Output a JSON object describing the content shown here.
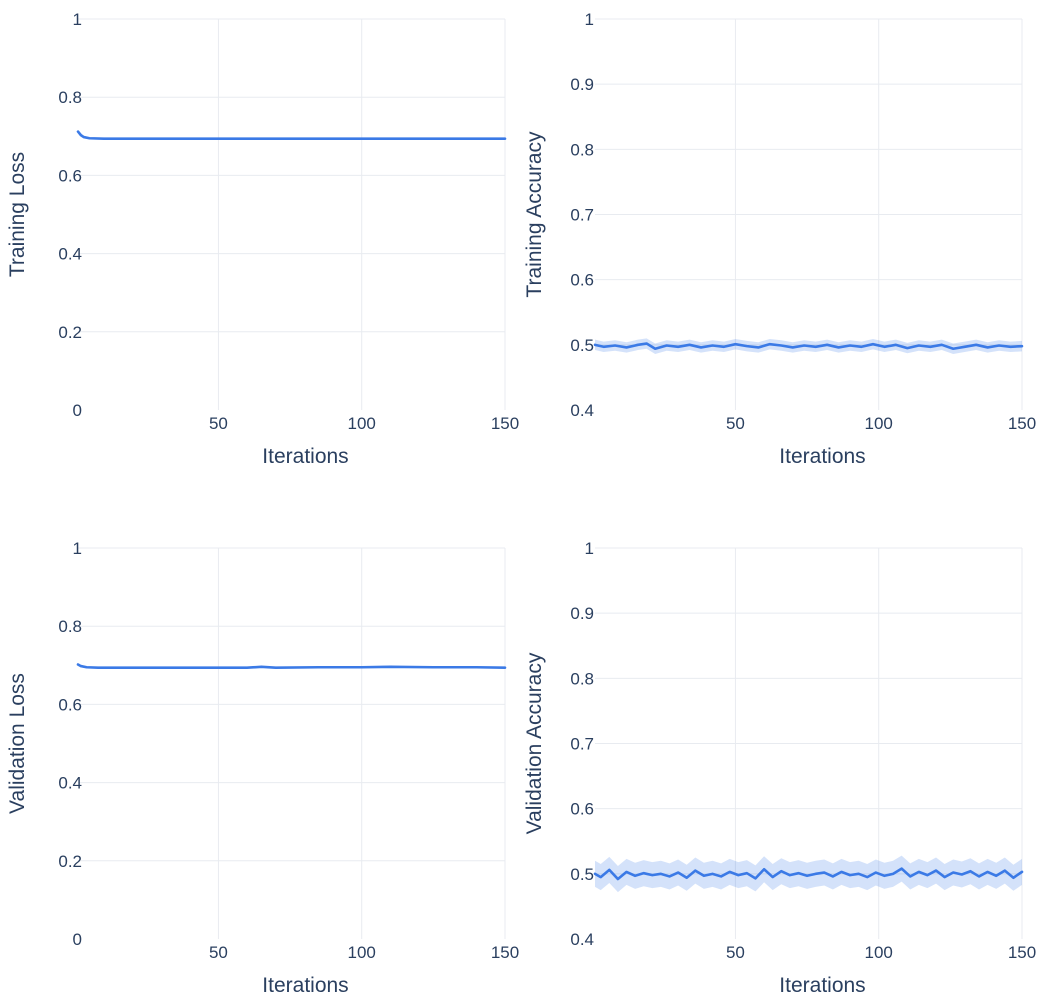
{
  "colors": {
    "line": "#3b7ae6",
    "band": "rgba(59,122,230,0.22)",
    "grid": "#e8ebf0",
    "text": "#2a3f5f",
    "background": "#ffffff"
  },
  "chart_data": [
    {
      "id": "training-loss",
      "type": "line",
      "xlabel": "Iterations",
      "ylabel": "Training Loss",
      "xlim": [
        1,
        150
      ],
      "ylim": [
        0,
        1
      ],
      "xticks": [
        50,
        100,
        150
      ],
      "yticks": [
        0,
        0.2,
        0.4,
        0.6,
        0.8,
        1
      ],
      "yticklabels": [
        "0",
        "0.2",
        "0.4",
        "0.6",
        "0.8",
        "1"
      ],
      "grid": true,
      "band": false,
      "series": [
        {
          "x": [
            1,
            2,
            3,
            5,
            10,
            20,
            40,
            60,
            80,
            100,
            120,
            140,
            150
          ],
          "y": [
            0.712,
            0.703,
            0.698,
            0.695,
            0.694,
            0.694,
            0.694,
            0.694,
            0.694,
            0.694,
            0.694,
            0.694,
            0.694
          ]
        }
      ]
    },
    {
      "id": "training-accuracy",
      "type": "line",
      "xlabel": "Iterations",
      "ylabel": "Training Accuracy",
      "xlim": [
        1,
        150
      ],
      "ylim": [
        0.4,
        1
      ],
      "xticks": [
        50,
        100,
        150
      ],
      "yticks": [
        0.4,
        0.5,
        0.6,
        0.7,
        0.8,
        0.9,
        1
      ],
      "yticklabels": [
        "0.4",
        "0.5",
        "0.6",
        "0.7",
        "0.8",
        "0.9",
        "1"
      ],
      "grid": true,
      "band": true,
      "series": [
        {
          "x": [
            1,
            4,
            8,
            12,
            16,
            19,
            22,
            26,
            30,
            34,
            38,
            42,
            46,
            50,
            54,
            58,
            62,
            66,
            70,
            74,
            78,
            82,
            86,
            90,
            94,
            98,
            102,
            106,
            110,
            114,
            118,
            122,
            126,
            130,
            134,
            138,
            142,
            146,
            150
          ],
          "y": [
            0.5,
            0.497,
            0.499,
            0.496,
            0.5,
            0.502,
            0.494,
            0.499,
            0.497,
            0.5,
            0.496,
            0.499,
            0.497,
            0.501,
            0.498,
            0.496,
            0.501,
            0.499,
            0.496,
            0.499,
            0.497,
            0.5,
            0.496,
            0.499,
            0.497,
            0.501,
            0.497,
            0.5,
            0.495,
            0.499,
            0.497,
            0.5,
            0.494,
            0.497,
            0.5,
            0.496,
            0.499,
            0.497,
            0.498
          ],
          "band_width": 0.008
        }
      ]
    },
    {
      "id": "validation-loss",
      "type": "line",
      "xlabel": "Iterations",
      "ylabel": "Validation Loss",
      "xlim": [
        1,
        150
      ],
      "ylim": [
        0,
        1
      ],
      "xticks": [
        50,
        100,
        150
      ],
      "yticks": [
        0,
        0.2,
        0.4,
        0.6,
        0.8,
        1
      ],
      "yticklabels": [
        "0",
        "0.2",
        "0.4",
        "0.6",
        "0.8",
        "1"
      ],
      "grid": true,
      "band": false,
      "series": [
        {
          "x": [
            1,
            2,
            4,
            8,
            20,
            40,
            60,
            65,
            70,
            85,
            100,
            110,
            125,
            140,
            150
          ],
          "y": [
            0.702,
            0.698,
            0.695,
            0.694,
            0.694,
            0.694,
            0.694,
            0.696,
            0.694,
            0.695,
            0.695,
            0.696,
            0.695,
            0.695,
            0.694
          ]
        }
      ]
    },
    {
      "id": "validation-accuracy",
      "type": "line",
      "xlabel": "Iterations",
      "ylabel": "Validation Accuracy",
      "xlim": [
        1,
        150
      ],
      "ylim": [
        0.4,
        1
      ],
      "xticks": [
        50,
        100,
        150
      ],
      "yticks": [
        0.4,
        0.5,
        0.6,
        0.7,
        0.8,
        0.9,
        1
      ],
      "yticklabels": [
        "0.4",
        "0.5",
        "0.6",
        "0.7",
        "0.8",
        "0.9",
        "1"
      ],
      "grid": true,
      "band": true,
      "series": [
        {
          "x": [
            1,
            3,
            6,
            9,
            12,
            15,
            18,
            21,
            24,
            27,
            30,
            33,
            36,
            39,
            42,
            45,
            48,
            51,
            54,
            57,
            60,
            63,
            66,
            69,
            72,
            75,
            78,
            81,
            84,
            87,
            90,
            93,
            96,
            99,
            102,
            105,
            108,
            111,
            114,
            117,
            120,
            123,
            126,
            129,
            132,
            135,
            138,
            141,
            144,
            147,
            150
          ],
          "y": [
            0.5,
            0.495,
            0.506,
            0.492,
            0.503,
            0.497,
            0.501,
            0.498,
            0.5,
            0.496,
            0.502,
            0.494,
            0.505,
            0.497,
            0.5,
            0.496,
            0.503,
            0.498,
            0.501,
            0.493,
            0.507,
            0.495,
            0.504,
            0.498,
            0.501,
            0.497,
            0.5,
            0.502,
            0.496,
            0.503,
            0.498,
            0.5,
            0.495,
            0.502,
            0.497,
            0.5,
            0.508,
            0.496,
            0.503,
            0.498,
            0.505,
            0.495,
            0.502,
            0.499,
            0.504,
            0.496,
            0.503,
            0.497,
            0.505,
            0.494,
            0.503
          ],
          "band_width": 0.02
        }
      ]
    }
  ]
}
